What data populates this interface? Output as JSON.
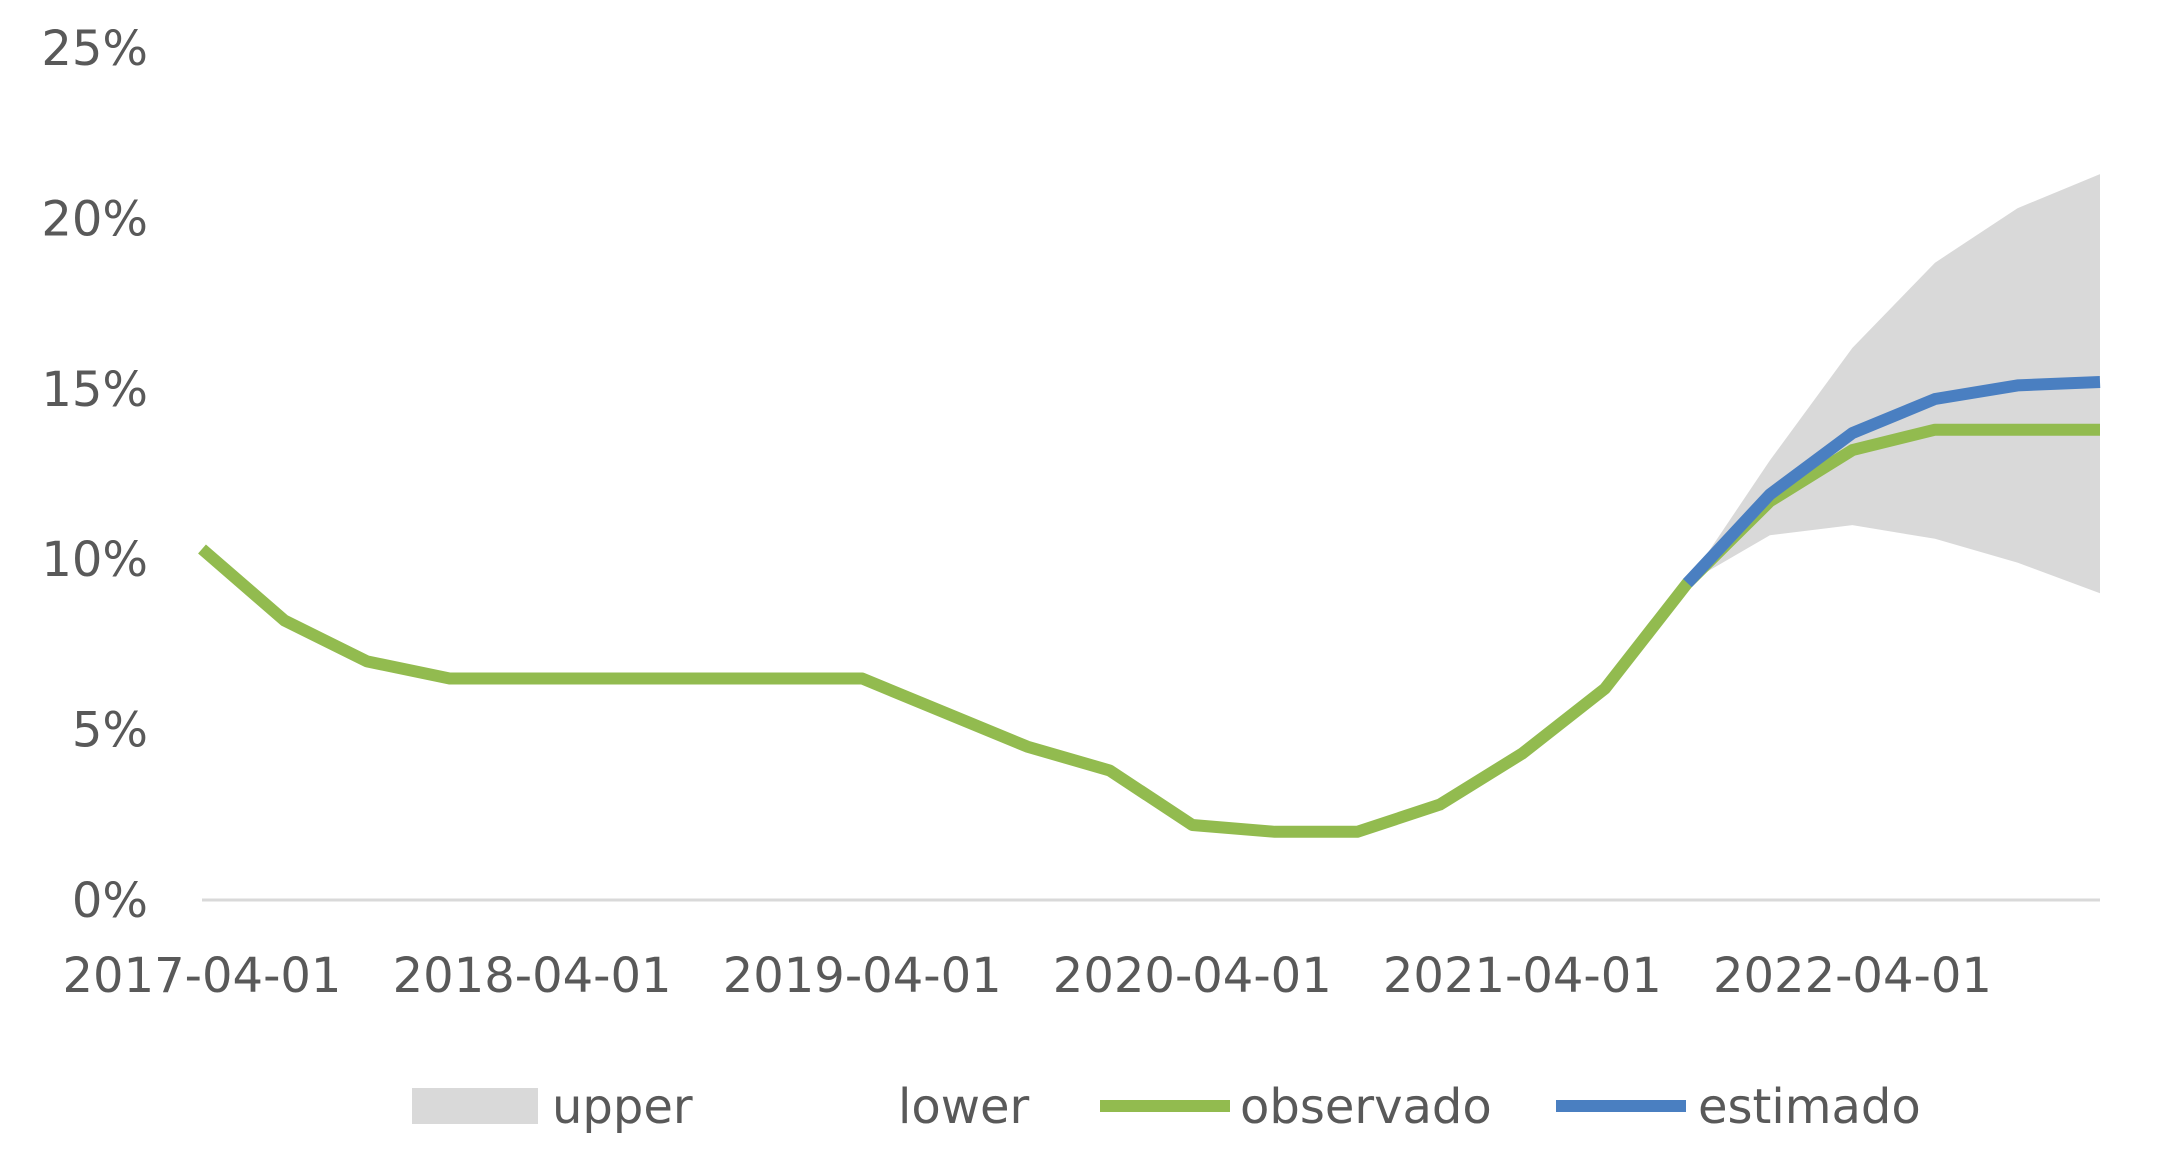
{
  "chart_data": {
    "type": "line",
    "title": "",
    "xlabel": "",
    "ylabel": "",
    "x_tick_labels": [
      "2017-04-01",
      "2018-04-01",
      "2019-04-01",
      "2020-04-01",
      "2021-04-01",
      "2022-04-01"
    ],
    "x": [
      "2017-04-01",
      "2017-07-01",
      "2017-10-01",
      "2018-01-01",
      "2018-04-01",
      "2018-07-01",
      "2018-10-01",
      "2019-01-01",
      "2019-04-01",
      "2019-07-01",
      "2019-10-01",
      "2020-01-01",
      "2020-04-01",
      "2020-07-01",
      "2020-10-01",
      "2021-01-01",
      "2021-04-01",
      "2021-07-01",
      "2021-10-01",
      "2022-01-01",
      "2022-04-01",
      "2022-07-01",
      "2022-10-01",
      "2023-01-01"
    ],
    "ylim": [
      0,
      0.25
    ],
    "y_ticks": [
      0,
      0.05,
      0.1,
      0.15,
      0.2,
      0.25
    ],
    "y_tick_labels": [
      "0%",
      "5%",
      "10%",
      "15%",
      "20%",
      "25%"
    ],
    "grid": false,
    "legend_position": "bottom",
    "series": [
      {
        "name": "upper",
        "kind": "band-upper",
        "color": "#d9d9d9",
        "values": [
          null,
          null,
          null,
          null,
          null,
          null,
          null,
          null,
          null,
          null,
          null,
          null,
          null,
          null,
          null,
          null,
          null,
          null,
          0.093,
          0.129,
          0.162,
          0.187,
          0.203,
          0.213
        ]
      },
      {
        "name": "lower",
        "kind": "band-lower",
        "color": "#ffffff",
        "values": [
          null,
          null,
          null,
          null,
          null,
          null,
          null,
          null,
          null,
          null,
          null,
          null,
          null,
          null,
          null,
          null,
          null,
          null,
          0.093,
          0.107,
          0.11,
          0.106,
          0.099,
          0.09
        ]
      },
      {
        "name": "observado",
        "kind": "line",
        "color": "#92bb4f",
        "values": [
          0.103,
          0.082,
          0.07,
          0.065,
          0.065,
          0.065,
          0.065,
          0.065,
          0.065,
          0.055,
          0.045,
          0.038,
          0.022,
          0.02,
          0.02,
          0.028,
          0.043,
          0.062,
          0.093,
          0.117,
          0.132,
          0.138,
          0.138,
          0.138
        ]
      },
      {
        "name": "estimado",
        "kind": "line",
        "color": "#4a7fc1",
        "values": [
          null,
          null,
          null,
          null,
          null,
          null,
          null,
          null,
          null,
          null,
          null,
          null,
          null,
          null,
          null,
          null,
          null,
          null,
          0.093,
          0.119,
          0.137,
          0.147,
          0.151,
          0.152
        ]
      }
    ]
  }
}
